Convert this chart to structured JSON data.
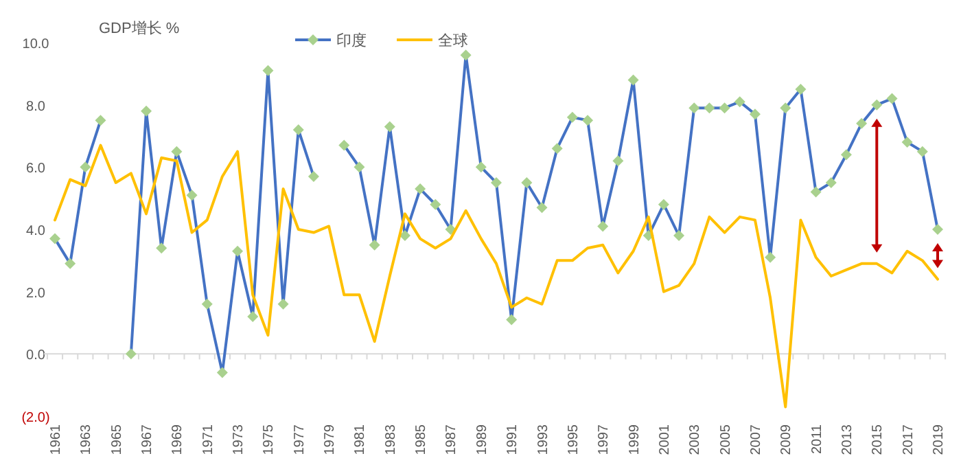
{
  "chart_data": {
    "type": "line",
    "title": "GDP增长 %",
    "categories": [
      "1961",
      null,
      "1963",
      null,
      "1965",
      null,
      "1967",
      null,
      "1969",
      null,
      "1971",
      null,
      "1973",
      null,
      "1975",
      null,
      "1977",
      null,
      "1979",
      null,
      "1981",
      null,
      "1983",
      null,
      "1985",
      null,
      "1987",
      null,
      "1989",
      null,
      "1991",
      null,
      "1993",
      null,
      "1995",
      null,
      "1997",
      null,
      "1999",
      null,
      "2001",
      null,
      "2003",
      null,
      "2005",
      null,
      "2007",
      null,
      "2009",
      null,
      "2011",
      null,
      "2013",
      null,
      "2015",
      null,
      "2017",
      null,
      "2019"
    ],
    "series": [
      {
        "name": "印度",
        "color": "#4472c4",
        "marker": "diamond",
        "values": [
          3.7,
          2.9,
          6.0,
          7.5,
          null,
          0.0,
          7.8,
          3.4,
          6.5,
          5.1,
          1.6,
          -0.6,
          3.3,
          1.2,
          9.1,
          1.6,
          7.2,
          5.7,
          null,
          6.7,
          6.0,
          3.5,
          7.3,
          3.8,
          5.3,
          4.8,
          4.0,
          9.6,
          6.0,
          5.5,
          1.1,
          5.5,
          4.7,
          6.6,
          7.6,
          7.5,
          4.1,
          6.2,
          8.8,
          3.8,
          4.8,
          3.8,
          7.9,
          7.9,
          7.9,
          8.1,
          7.7,
          3.1,
          7.9,
          8.5,
          5.2,
          5.5,
          6.4,
          7.4,
          8.0,
          8.2,
          6.8,
          6.5,
          4.0
        ]
      },
      {
        "name": "全球",
        "color": "#ffc000",
        "marker": "none",
        "values": [
          4.3,
          5.6,
          5.4,
          6.7,
          5.5,
          5.8,
          4.5,
          6.3,
          6.2,
          3.9,
          4.3,
          5.7,
          6.5,
          1.9,
          0.6,
          5.3,
          4.0,
          3.9,
          4.1,
          1.9,
          1.9,
          0.4,
          2.5,
          4.5,
          3.7,
          3.4,
          3.7,
          4.6,
          3.7,
          2.9,
          1.5,
          1.8,
          1.6,
          3.0,
          3.0,
          3.4,
          3.5,
          2.6,
          3.3,
          4.4,
          2.0,
          2.2,
          2.9,
          4.4,
          3.9,
          4.4,
          4.3,
          1.8,
          -1.7,
          4.3,
          3.1,
          2.5,
          2.7,
          2.9,
          2.9,
          2.6,
          3.3,
          3.0,
          2.4
        ]
      }
    ],
    "ylim": [
      -2,
      10
    ],
    "yticks": [
      {
        "value": -2,
        "label": "(2.0)"
      },
      {
        "value": 0,
        "label": "0.0"
      },
      {
        "value": 2,
        "label": "2.0"
      },
      {
        "value": 4,
        "label": "4.0"
      },
      {
        "value": 6,
        "label": "6.0"
      },
      {
        "value": 8,
        "label": "8.0"
      },
      {
        "value": 10,
        "label": "10.0"
      }
    ],
    "legend": "top",
    "line_style": "solid"
  }
}
